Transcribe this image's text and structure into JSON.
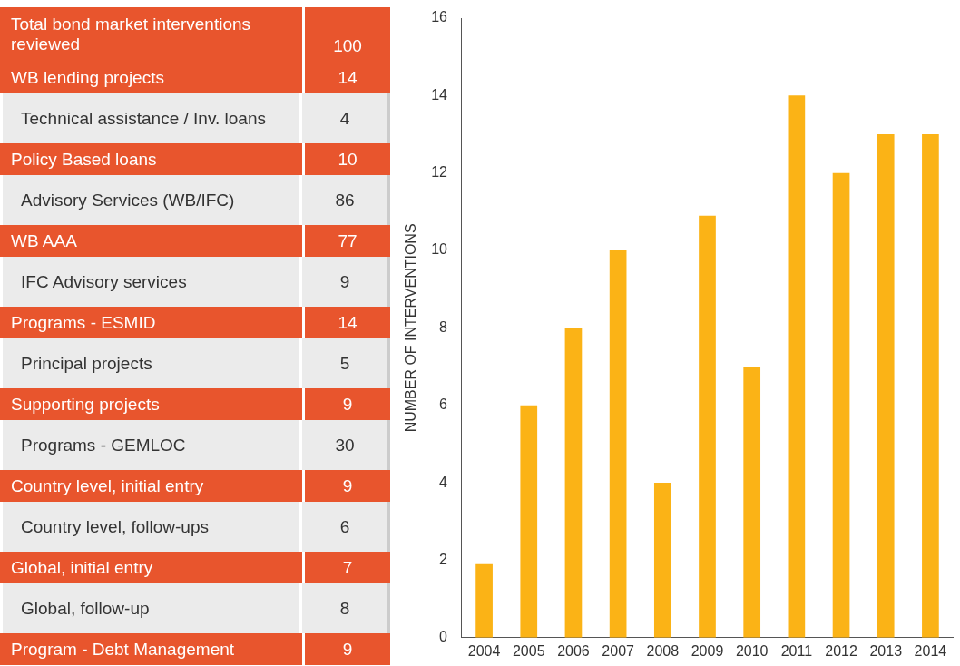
{
  "chart_data": [
    {
      "type": "other",
      "data_labels": true,
      "categories": [
        "Total bond market interventions reviewed",
        "WB lending projects",
        "Technical assistance / Inv. loans",
        "Policy Based loans",
        "Advisory Services (WB/IFC)",
        "WB AAA",
        "IFC Advisory services",
        "Programs - ESMID",
        "Principal projects",
        "Supporting projects",
        "Programs - GEMLOC",
        "Country level, initial entry",
        "Country level, follow-ups",
        "Global, initial entry",
        "Global, follow-up",
        "Program - Debt Management"
      ],
      "values": [
        100,
        14,
        4,
        10,
        86,
        77,
        9,
        14,
        5,
        9,
        30,
        9,
        6,
        7,
        8,
        9
      ]
    },
    {
      "type": "bar",
      "ylabel": "NUMBER OF INTERVENTIONS",
      "categories": [
        "2004",
        "2005",
        "2006",
        "2007",
        "2008",
        "2009",
        "2010",
        "2011",
        "2012",
        "2013",
        "2014"
      ],
      "values": [
        1.9,
        6,
        8,
        10,
        4,
        10.9,
        7,
        14,
        12,
        13,
        13
      ],
      "color": "#fbb316",
      "ylim": [
        0,
        16
      ],
      "yticks": [
        0,
        2,
        4,
        6,
        8,
        10,
        12,
        14,
        16
      ],
      "grid": false,
      "legend": false
    }
  ]
}
